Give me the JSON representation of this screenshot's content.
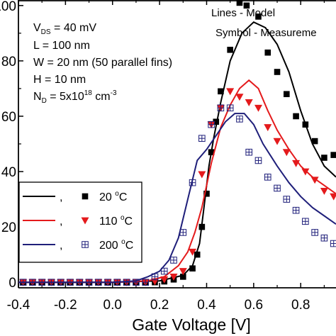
{
  "chart_data": {
    "type": "line",
    "xlabel": "Gate Voltage [V]",
    "xlim": [
      -0.4,
      0.95
    ],
    "ylim": [
      -2,
      102
    ],
    "x_ticks": [
      "-0.4",
      "-0.2",
      "0.0",
      "0.2",
      "0.4",
      "0.6",
      "0.8"
    ],
    "y_ticks_visible": [
      "0",
      "20",
      "40",
      "60",
      "80",
      "100"
    ],
    "annotations": {
      "lines_note": "Lines - Model",
      "symbol_note": "Symbol - Measureme",
      "vds": {
        "main": "V",
        "sub": "DS",
        "rest": " = 40 mV"
      },
      "length": "L = 100 nm",
      "width": "W = 20 nm (50 parallel fins)",
      "height": "H = 10 nm",
      "doping": {
        "main": "N",
        "sub": "D",
        "rest": " = 5x10",
        "sup": "18",
        "unit": " cm",
        "unit_sup": "-3"
      }
    },
    "legend_labels": [
      {
        "sep": ",",
        "temp": "20 ",
        "deg": "o",
        "unit": "C"
      },
      {
        "sep": ",",
        "temp": "110 ",
        "deg": "o",
        "unit": "C"
      },
      {
        "sep": ",",
        "temp": "200 ",
        "deg": "o",
        "unit": "C"
      }
    ],
    "series": [
      {
        "color": "#000000",
        "marker": "square",
        "model": {
          "x": [
            -0.4,
            0.0,
            0.2,
            0.3,
            0.34,
            0.37,
            0.39,
            0.41,
            0.43,
            0.46,
            0.5,
            0.55,
            0.6,
            0.65,
            0.7,
            0.75,
            0.8,
            0.85,
            0.9,
            0.95
          ],
          "y": [
            0,
            0,
            0.5,
            2.5,
            6,
            14,
            28,
            42,
            52,
            65,
            80,
            90,
            94,
            92,
            86,
            76,
            62,
            50,
            42,
            38
          ]
        },
        "measured": {
          "x": [
            -0.38,
            -0.34,
            -0.3,
            -0.26,
            -0.22,
            -0.18,
            -0.14,
            -0.1,
            -0.06,
            -0.02,
            0.02,
            0.06,
            0.1,
            0.14,
            0.18,
            0.22,
            0.26,
            0.3,
            0.34,
            0.36,
            0.38,
            0.4,
            0.42,
            0.44,
            0.46,
            0.5,
            0.54,
            0.57,
            0.62,
            0.66,
            0.7,
            0.74,
            0.78,
            0.82,
            0.86,
            0.9,
            0.94
          ],
          "y": [
            0,
            0,
            0,
            0,
            0,
            0,
            0,
            0,
            0,
            0,
            0,
            0,
            0,
            0,
            0,
            0.3,
            1,
            2,
            5,
            10,
            20,
            32,
            47,
            58,
            69,
            84,
            101,
            100,
            96,
            83,
            76,
            68,
            60,
            57,
            51,
            45,
            46
          ]
        }
      },
      {
        "color": "#e41a1c",
        "marker": "triangle-down",
        "model": {
          "x": [
            -0.4,
            0.0,
            0.15,
            0.22,
            0.28,
            0.32,
            0.35,
            0.38,
            0.42,
            0.46,
            0.5,
            0.54,
            0.58,
            0.62,
            0.66,
            0.7,
            0.75,
            0.8,
            0.85,
            0.9,
            0.95
          ],
          "y": [
            0,
            0,
            0.5,
            2,
            6,
            11,
            18,
            27,
            43,
            56,
            64,
            70,
            73,
            70,
            62,
            55,
            48,
            42,
            38,
            35,
            32
          ]
        },
        "measured": {
          "x": [
            -0.38,
            -0.34,
            -0.3,
            -0.26,
            -0.22,
            -0.18,
            -0.14,
            -0.1,
            -0.06,
            -0.02,
            0.02,
            0.06,
            0.1,
            0.14,
            0.18,
            0.22,
            0.26,
            0.3,
            0.34,
            0.38,
            0.42,
            0.46,
            0.5,
            0.54,
            0.58,
            0.62,
            0.66,
            0.7,
            0.74,
            0.78,
            0.82,
            0.86,
            0.9,
            0.94
          ],
          "y": [
            0,
            0,
            0,
            0,
            0,
            0,
            0,
            0,
            0,
            0,
            0,
            0,
            0,
            0,
            0.3,
            1,
            2,
            4,
            11,
            39,
            57,
            63,
            69,
            67,
            65,
            63,
            56,
            51,
            47,
            43,
            40,
            37,
            33,
            31
          ]
        }
      },
      {
        "color": "#1f1f7a",
        "marker": "square-cross",
        "model": {
          "x": [
            -0.4,
            0.0,
            0.1,
            0.15,
            0.2,
            0.24,
            0.28,
            0.32,
            0.36,
            0.4,
            0.44,
            0.48,
            0.52,
            0.56,
            0.6,
            0.64,
            0.7,
            0.75,
            0.8,
            0.85,
            0.9,
            0.95
          ],
          "y": [
            0,
            0,
            0.5,
            2,
            4,
            8,
            16,
            30,
            44,
            48,
            53,
            58,
            61,
            61,
            57,
            50,
            42,
            36,
            31,
            27,
            24,
            21
          ]
        },
        "measured": {
          "x": [
            -0.38,
            -0.34,
            -0.3,
            -0.26,
            -0.22,
            -0.18,
            -0.14,
            -0.1,
            -0.06,
            -0.02,
            0.02,
            0.06,
            0.1,
            0.14,
            0.18,
            0.22,
            0.26,
            0.3,
            0.34,
            0.38,
            0.42,
            0.46,
            0.5,
            0.54,
            0.58,
            0.62,
            0.66,
            0.7,
            0.74,
            0.78,
            0.82,
            0.86,
            0.9,
            0.94
          ],
          "y": [
            0,
            0,
            0,
            0,
            0,
            0,
            0,
            0,
            0,
            0,
            0,
            0,
            0,
            0,
            2,
            4,
            8,
            18,
            36,
            52,
            57,
            63,
            63,
            59,
            47,
            44,
            38,
            34,
            30,
            26,
            22,
            18,
            16,
            14
          ]
        }
      }
    ]
  }
}
